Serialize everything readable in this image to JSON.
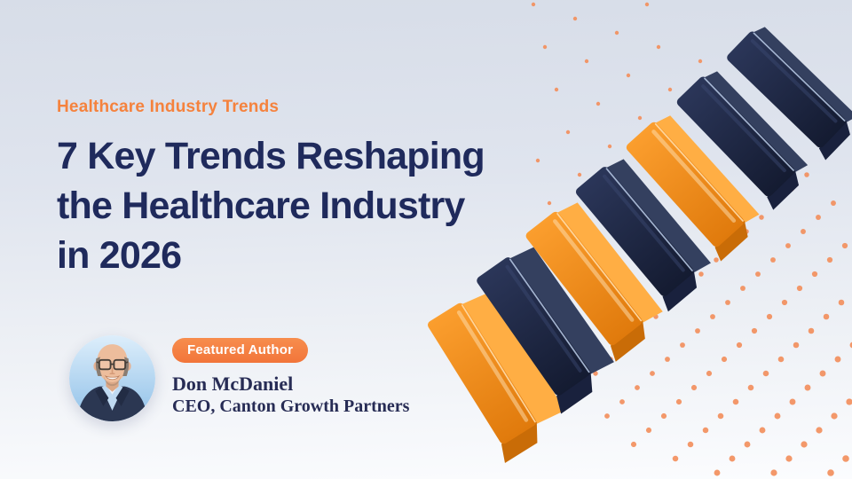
{
  "colors": {
    "bg_top": "#D7DDE8",
    "bg_bottom": "#FBFCFE",
    "accent": "#F5823D",
    "heading_text": "#1F2A5C",
    "author_text": "#272C55",
    "badge_bg_start": "#F78D4D",
    "badge_bg_end": "#F2753A",
    "badge_text": "#FFFFFF",
    "dot": "#F3905E",
    "bar_navy_top": "#34405F",
    "bar_navy_front_a": "#2B3659",
    "bar_navy_front_b": "#141B31",
    "bar_navy_cap": "#19213D",
    "bar_navy_ridge": "#A9BAD6",
    "bar_orange_top": "#FFAE44",
    "bar_orange_front_a": "#FB9E2E",
    "bar_orange_front_b": "#E07A0C",
    "bar_orange_cap": "#C96C07",
    "bar_orange_ridge": "#FFD9A2"
  },
  "eyebrow": {
    "label": "Healthcare Industry Trends"
  },
  "heading": {
    "text": "7 Key Trends Reshaping\nthe Healthcare Industry\nin 2026"
  },
  "author": {
    "badge_label": "Featured Author",
    "name": "Don McDaniel",
    "role": "CEO, Canton Growth Partners"
  },
  "illustration": {
    "bar_sequence": [
      "orange",
      "navy",
      "orange",
      "navy",
      "orange",
      "navy",
      "navy"
    ]
  }
}
